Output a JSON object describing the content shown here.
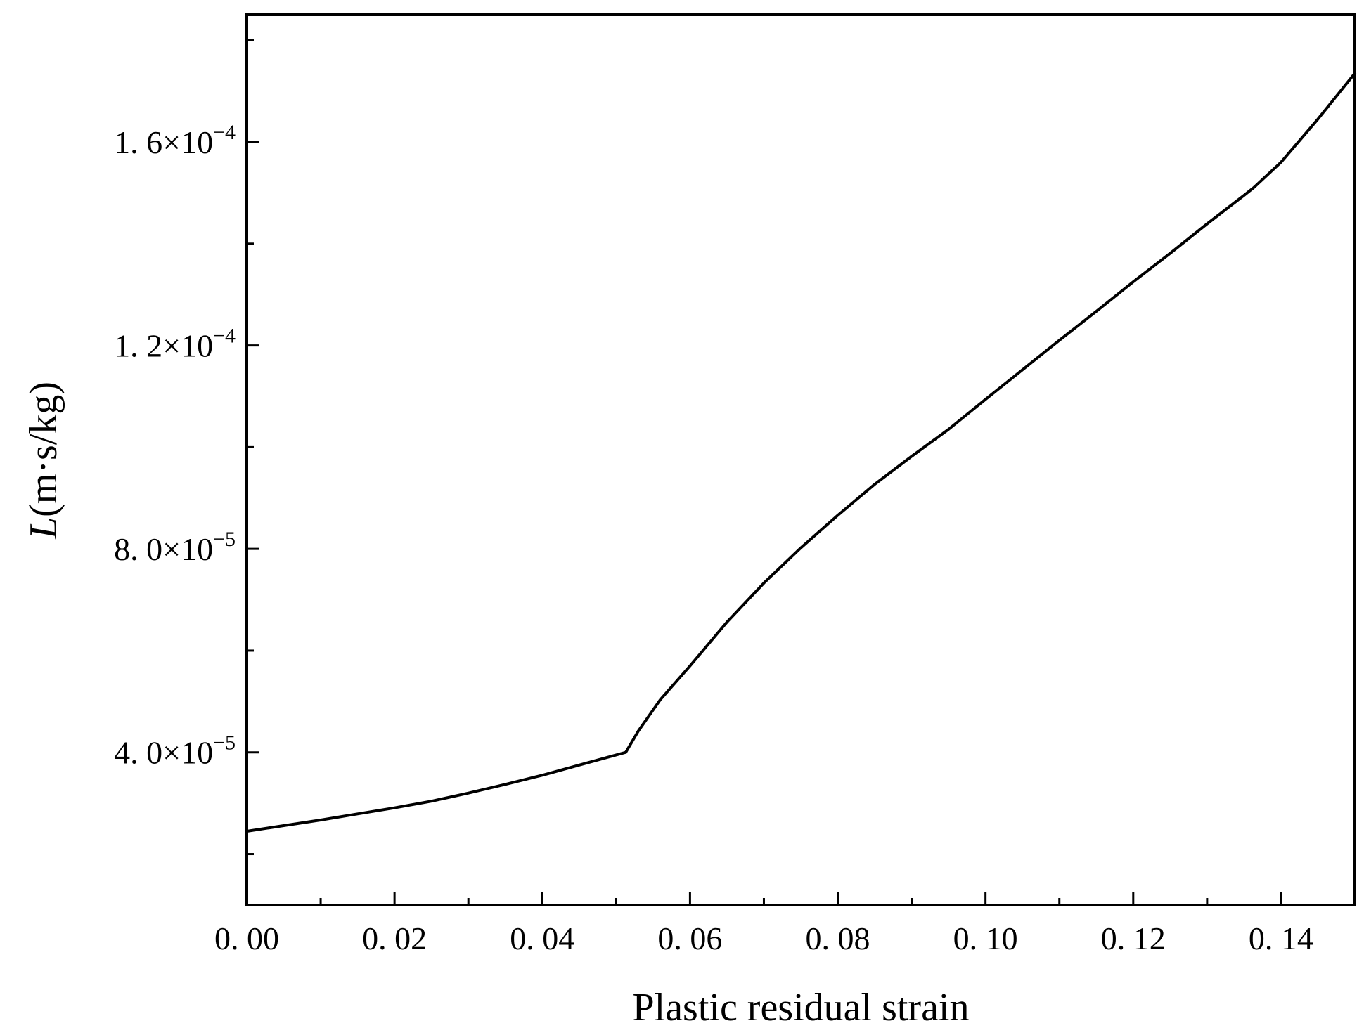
{
  "chart_data": {
    "type": "line",
    "xlabel": "Plastic residual strain",
    "ylabel": "L(m·s/kg)",
    "ylabel_symbol": "L",
    "ylabel_unit": "(m·s/kg)",
    "xlim": [
      0.0,
      0.15
    ],
    "ylim": [
      9.99e-06,
      0.000185
    ],
    "grid": false,
    "x_ticks": [
      {
        "value": 0.0,
        "label": "0. 00"
      },
      {
        "value": 0.02,
        "label": "0. 02"
      },
      {
        "value": 0.04,
        "label": "0. 04"
      },
      {
        "value": 0.06,
        "label": "0. 06"
      },
      {
        "value": 0.08,
        "label": "0. 08"
      },
      {
        "value": 0.1,
        "label": "0. 10"
      },
      {
        "value": 0.12,
        "label": "0. 12"
      },
      {
        "value": 0.14,
        "label": "0. 14"
      }
    ],
    "x_minor_ticks": [
      0.01,
      0.03,
      0.05,
      0.07,
      0.09,
      0.11,
      0.13
    ],
    "y_ticks": [
      {
        "value": 4e-05,
        "mantissa": "4. 0",
        "exponent": "−5"
      },
      {
        "value": 8e-05,
        "mantissa": "8. 0",
        "exponent": "−5"
      },
      {
        "value": 0.00012,
        "mantissa": "1. 2",
        "exponent": "−4"
      },
      {
        "value": 0.00016,
        "mantissa": "1. 6",
        "exponent": "−4"
      }
    ],
    "y_minor_ticks": [
      2e-05,
      6e-05,
      0.0001,
      0.00014,
      0.00018
    ],
    "series": [
      {
        "color": "#000000",
        "x": [
          0.0,
          0.005,
          0.01,
          0.015,
          0.02,
          0.025,
          0.03,
          0.035,
          0.04,
          0.045,
          0.05,
          0.0513,
          0.053,
          0.056,
          0.06,
          0.065,
          0.07,
          0.075,
          0.08,
          0.085,
          0.09,
          0.095,
          0.1,
          0.105,
          0.11,
          0.115,
          0.12,
          0.125,
          0.13,
          0.135,
          0.1363,
          0.14,
          0.145,
          0.15
        ],
        "y": [
          2.45e-05,
          2.56e-05,
          2.67e-05,
          2.79e-05,
          2.91e-05,
          3.04e-05,
          3.2e-05,
          3.37e-05,
          3.55e-05,
          3.75e-05,
          3.95e-05,
          4e-05,
          4.42e-05,
          5.04e-05,
          5.7e-05,
          6.56e-05,
          7.33e-05,
          8.02e-05,
          8.66e-05,
          9.27e-05,
          9.82e-05,
          0.0001035,
          0.0001094,
          0.0001152,
          0.000121,
          0.0001267,
          0.0001325,
          0.0001381,
          0.0001439,
          0.0001495,
          0.000151,
          0.000156,
          0.0001645,
          0.0001735
        ]
      }
    ]
  }
}
